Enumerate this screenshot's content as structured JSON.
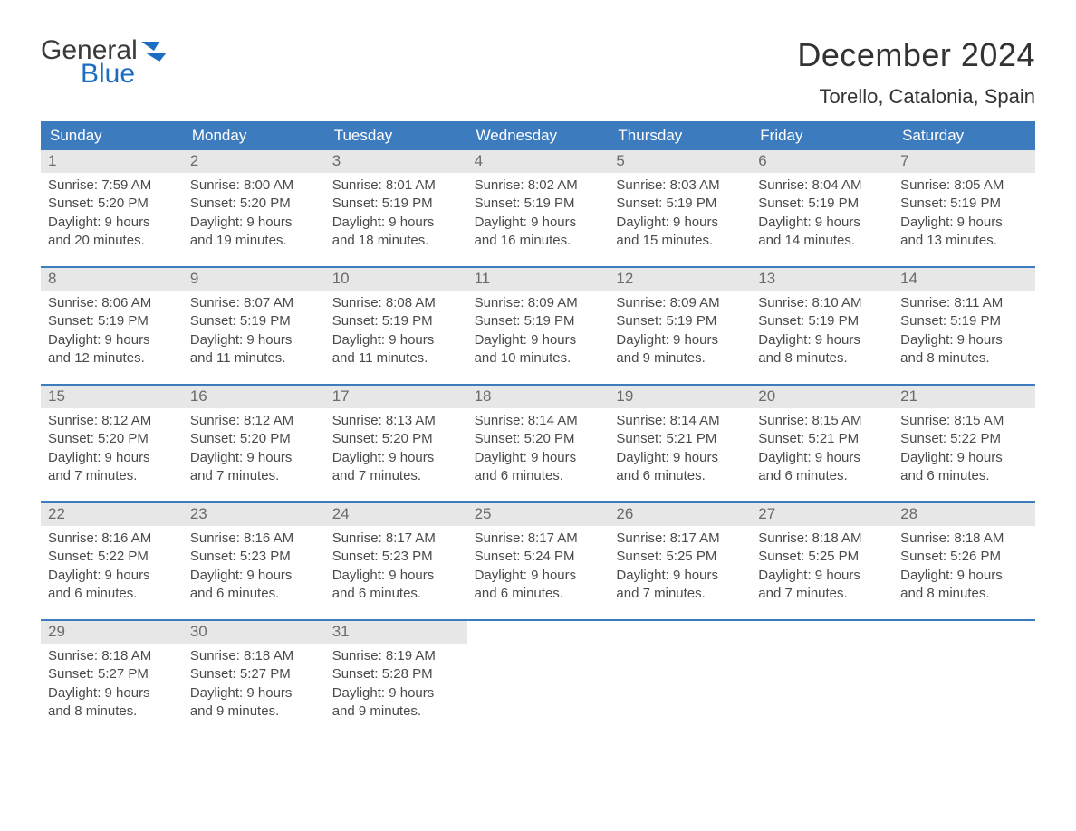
{
  "brand": {
    "word1": "General",
    "word2": "Blue",
    "word1_color": "#3a3a3a",
    "word2_color": "#1b6ec2",
    "mark_color": "#1b6ec2"
  },
  "title": {
    "month_year": "December 2024",
    "location": "Torello, Catalonia, Spain",
    "text_color": "#333333",
    "month_fontsize": 36,
    "location_fontsize": 22
  },
  "colors": {
    "header_bg": "#3d7bbf",
    "header_text": "#ffffff",
    "daynum_bg": "#e7e7e7",
    "daynum_text": "#6b6b6b",
    "body_text": "#4a4a4a",
    "week_border": "#3d7bbf",
    "page_bg": "#ffffff"
  },
  "weekdays": [
    "Sunday",
    "Monday",
    "Tuesday",
    "Wednesday",
    "Thursday",
    "Friday",
    "Saturday"
  ],
  "labels": {
    "sunrise": "Sunrise:",
    "sunset": "Sunset:",
    "daylight": "Daylight:"
  },
  "weeks": [
    [
      {
        "n": "1",
        "sunrise": "7:59 AM",
        "sunset": "5:20 PM",
        "day_h": "9 hours",
        "day_m": "and 20 minutes."
      },
      {
        "n": "2",
        "sunrise": "8:00 AM",
        "sunset": "5:20 PM",
        "day_h": "9 hours",
        "day_m": "and 19 minutes."
      },
      {
        "n": "3",
        "sunrise": "8:01 AM",
        "sunset": "5:19 PM",
        "day_h": "9 hours",
        "day_m": "and 18 minutes."
      },
      {
        "n": "4",
        "sunrise": "8:02 AM",
        "sunset": "5:19 PM",
        "day_h": "9 hours",
        "day_m": "and 16 minutes."
      },
      {
        "n": "5",
        "sunrise": "8:03 AM",
        "sunset": "5:19 PM",
        "day_h": "9 hours",
        "day_m": "and 15 minutes."
      },
      {
        "n": "6",
        "sunrise": "8:04 AM",
        "sunset": "5:19 PM",
        "day_h": "9 hours",
        "day_m": "and 14 minutes."
      },
      {
        "n": "7",
        "sunrise": "8:05 AM",
        "sunset": "5:19 PM",
        "day_h": "9 hours",
        "day_m": "and 13 minutes."
      }
    ],
    [
      {
        "n": "8",
        "sunrise": "8:06 AM",
        "sunset": "5:19 PM",
        "day_h": "9 hours",
        "day_m": "and 12 minutes."
      },
      {
        "n": "9",
        "sunrise": "8:07 AM",
        "sunset": "5:19 PM",
        "day_h": "9 hours",
        "day_m": "and 11 minutes."
      },
      {
        "n": "10",
        "sunrise": "8:08 AM",
        "sunset": "5:19 PM",
        "day_h": "9 hours",
        "day_m": "and 11 minutes."
      },
      {
        "n": "11",
        "sunrise": "8:09 AM",
        "sunset": "5:19 PM",
        "day_h": "9 hours",
        "day_m": "and 10 minutes."
      },
      {
        "n": "12",
        "sunrise": "8:09 AM",
        "sunset": "5:19 PM",
        "day_h": "9 hours",
        "day_m": "and 9 minutes."
      },
      {
        "n": "13",
        "sunrise": "8:10 AM",
        "sunset": "5:19 PM",
        "day_h": "9 hours",
        "day_m": "and 8 minutes."
      },
      {
        "n": "14",
        "sunrise": "8:11 AM",
        "sunset": "5:19 PM",
        "day_h": "9 hours",
        "day_m": "and 8 minutes."
      }
    ],
    [
      {
        "n": "15",
        "sunrise": "8:12 AM",
        "sunset": "5:20 PM",
        "day_h": "9 hours",
        "day_m": "and 7 minutes."
      },
      {
        "n": "16",
        "sunrise": "8:12 AM",
        "sunset": "5:20 PM",
        "day_h": "9 hours",
        "day_m": "and 7 minutes."
      },
      {
        "n": "17",
        "sunrise": "8:13 AM",
        "sunset": "5:20 PM",
        "day_h": "9 hours",
        "day_m": "and 7 minutes."
      },
      {
        "n": "18",
        "sunrise": "8:14 AM",
        "sunset": "5:20 PM",
        "day_h": "9 hours",
        "day_m": "and 6 minutes."
      },
      {
        "n": "19",
        "sunrise": "8:14 AM",
        "sunset": "5:21 PM",
        "day_h": "9 hours",
        "day_m": "and 6 minutes."
      },
      {
        "n": "20",
        "sunrise": "8:15 AM",
        "sunset": "5:21 PM",
        "day_h": "9 hours",
        "day_m": "and 6 minutes."
      },
      {
        "n": "21",
        "sunrise": "8:15 AM",
        "sunset": "5:22 PM",
        "day_h": "9 hours",
        "day_m": "and 6 minutes."
      }
    ],
    [
      {
        "n": "22",
        "sunrise": "8:16 AM",
        "sunset": "5:22 PM",
        "day_h": "9 hours",
        "day_m": "and 6 minutes."
      },
      {
        "n": "23",
        "sunrise": "8:16 AM",
        "sunset": "5:23 PM",
        "day_h": "9 hours",
        "day_m": "and 6 minutes."
      },
      {
        "n": "24",
        "sunrise": "8:17 AM",
        "sunset": "5:23 PM",
        "day_h": "9 hours",
        "day_m": "and 6 minutes."
      },
      {
        "n": "25",
        "sunrise": "8:17 AM",
        "sunset": "5:24 PM",
        "day_h": "9 hours",
        "day_m": "and 6 minutes."
      },
      {
        "n": "26",
        "sunrise": "8:17 AM",
        "sunset": "5:25 PM",
        "day_h": "9 hours",
        "day_m": "and 7 minutes."
      },
      {
        "n": "27",
        "sunrise": "8:18 AM",
        "sunset": "5:25 PM",
        "day_h": "9 hours",
        "day_m": "and 7 minutes."
      },
      {
        "n": "28",
        "sunrise": "8:18 AM",
        "sunset": "5:26 PM",
        "day_h": "9 hours",
        "day_m": "and 8 minutes."
      }
    ],
    [
      {
        "n": "29",
        "sunrise": "8:18 AM",
        "sunset": "5:27 PM",
        "day_h": "9 hours",
        "day_m": "and 8 minutes."
      },
      {
        "n": "30",
        "sunrise": "8:18 AM",
        "sunset": "5:27 PM",
        "day_h": "9 hours",
        "day_m": "and 9 minutes."
      },
      {
        "n": "31",
        "sunrise": "8:19 AM",
        "sunset": "5:28 PM",
        "day_h": "9 hours",
        "day_m": "and 9 minutes."
      },
      {
        "empty": true
      },
      {
        "empty": true
      },
      {
        "empty": true
      },
      {
        "empty": true
      }
    ]
  ]
}
